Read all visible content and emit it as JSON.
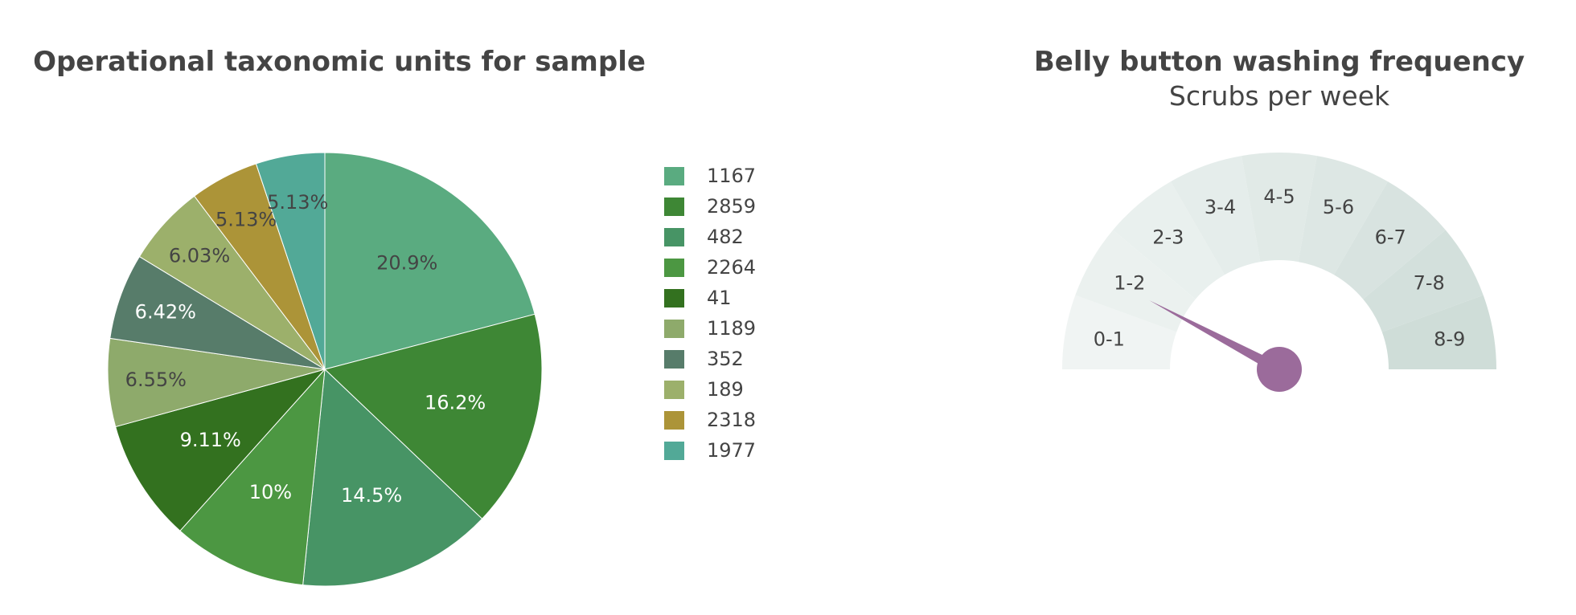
{
  "chart_data": [
    {
      "type": "pie",
      "title": "Operational taxonomic units for sample",
      "labels": [
        "1167",
        "2859",
        "482",
        "2264",
        "41",
        "1189",
        "352",
        "189",
        "2318",
        "1977"
      ],
      "values": [
        20.9,
        16.2,
        14.5,
        10.0,
        9.11,
        6.55,
        6.42,
        6.03,
        5.13,
        5.13
      ],
      "text": [
        "20.9%",
        "16.2%",
        "14.5%",
        "10%",
        "9.11%",
        "6.55%",
        "6.42%",
        "6.03%",
        "5.13%",
        "5.13%"
      ],
      "colors": [
        "#5aab80",
        "#3e8735",
        "#479465",
        "#4c9742",
        "#33711f",
        "#8eaa6b",
        "#577c6a",
        "#9cb06b",
        "#ac9438",
        "#52a997"
      ],
      "text_colors": [
        "#444444",
        "#ffffff",
        "#ffffff",
        "#ffffff",
        "#ffffff",
        "#444444",
        "#ffffff",
        "#444444",
        "#444444",
        "#444444"
      ],
      "direction": "clockwise",
      "sort": "descending",
      "legend": "right"
    },
    {
      "type": "gauge",
      "title": "Belly button washing frequency",
      "subtitle": "Scrubs per week",
      "range": [
        0,
        9
      ],
      "value": 1.4,
      "steps": [
        "0-1",
        "1-2",
        "2-3",
        "3-4",
        "4-5",
        "5-6",
        "6-7",
        "7-8",
        "8-9"
      ],
      "step_colors": [
        "#f0f4f3",
        "#ebf1ef",
        "#e9f0ee",
        "#e5edeb",
        "#e1eae7",
        "#dde7e4",
        "#d8e3e0",
        "#d3e0dc",
        "#cfddd8"
      ],
      "needle_color": "#9b6b9b"
    }
  ]
}
